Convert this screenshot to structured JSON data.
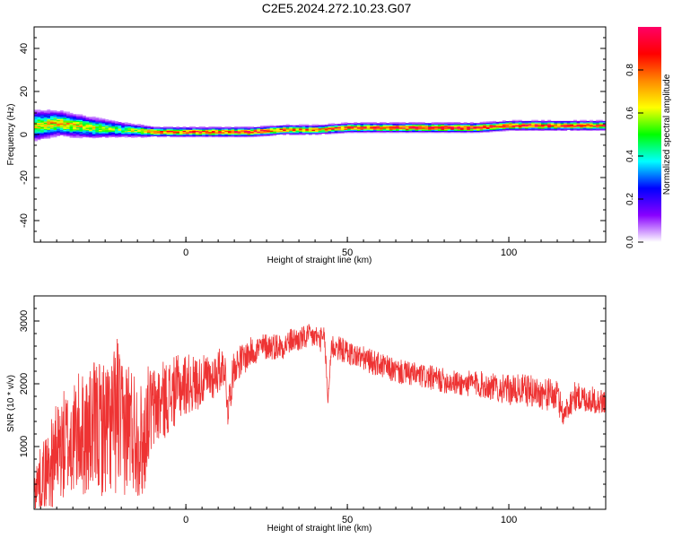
{
  "title": "C2E5.2024.272.10.23.G07",
  "colors": {
    "snr_line": "#ee3333",
    "rainbow": [
      "#ffffff",
      "#8800ff",
      "#0000ff",
      "#00ffff",
      "#00ff00",
      "#ffff00",
      "#ff8800",
      "#ff0000",
      "#ff0066"
    ]
  },
  "chart_data": [
    {
      "type": "heatmap",
      "xlabel": "Height of straight line (km)",
      "ylabel": "Frequency (Hz)",
      "xlim": [
        -47,
        130
      ],
      "ylim": [
        -50,
        50
      ],
      "x_ticks": [
        0,
        50,
        100
      ],
      "x_tick_labels": [
        "0",
        "50",
        "100"
      ],
      "y_ticks": [
        -40,
        -20,
        0,
        20,
        40
      ],
      "y_tick_labels": [
        "-40",
        "-20",
        "0",
        "20",
        "40"
      ],
      "colorbar": {
        "label": "Normalized spectral amplitude",
        "range": [
          0,
          1
        ],
        "ticks": [
          0,
          0.2,
          0.4,
          0.6,
          0.8
        ],
        "tick_labels": [
          "0.0",
          "0.2",
          "0.4",
          "0.6",
          "0.8"
        ]
      },
      "ridge": {
        "x": [
          -47,
          -40,
          -30,
          -20,
          -10,
          0,
          10,
          20,
          30,
          40,
          50,
          60,
          70,
          80,
          90,
          100,
          110,
          120,
          130
        ],
        "center_hz": [
          4,
          5,
          3,
          2,
          1,
          1,
          1,
          1,
          2,
          2,
          3,
          3,
          3,
          3,
          3,
          4,
          4,
          4,
          4
        ],
        "width_hz": [
          10,
          8,
          7,
          5,
          3,
          3,
          3,
          3,
          3,
          3,
          3,
          3,
          3,
          3,
          3,
          3,
          3,
          3,
          3
        ],
        "peak_amplitude": [
          0.6,
          0.7,
          0.6,
          0.5,
          0.8,
          0.85,
          0.85,
          0.9,
          0.8,
          0.75,
          0.85,
          0.85,
          0.9,
          0.95,
          0.95,
          0.9,
          0.9,
          0.85,
          0.85
        ]
      }
    },
    {
      "type": "line",
      "xlabel": "Height of straight line (km)",
      "ylabel": "SNR (10 * v/v)",
      "xlim": [
        -47,
        130
      ],
      "ylim": [
        0,
        3400
      ],
      "x_ticks": [
        0,
        50,
        100
      ],
      "x_tick_labels": [
        "0",
        "50",
        "100"
      ],
      "y_ticks": [
        1000,
        2000,
        3000
      ],
      "y_tick_labels": [
        "1000",
        "2000",
        "3000"
      ],
      "series": [
        {
          "x": [
            -47,
            -45,
            -42,
            -40,
            -38,
            -35,
            -33,
            -30,
            -28,
            -25,
            -22,
            -21,
            -20,
            -18,
            -15,
            -13,
            -12,
            -10,
            -8,
            -5,
            -3,
            0,
            3,
            5,
            8,
            10,
            12,
            13,
            15,
            18,
            20,
            22,
            25,
            28,
            30,
            33,
            35,
            38,
            40,
            42,
            43,
            44,
            45,
            48,
            50,
            55,
            60,
            65,
            70,
            75,
            80,
            85,
            90,
            95,
            100,
            105,
            110,
            115,
            117,
            120,
            125,
            130
          ],
          "mean": [
            300,
            500,
            700,
            900,
            1000,
            1100,
            1200,
            1200,
            1300,
            1300,
            1400,
            1600,
            1200,
            1400,
            1200,
            1000,
            1500,
            1600,
            1700,
            1800,
            1900,
            2000,
            2000,
            2050,
            2100,
            2200,
            2300,
            1600,
            2300,
            2400,
            2500,
            2550,
            2600,
            2600,
            2600,
            2700,
            2700,
            2750,
            2750,
            2700,
            2700,
            1700,
            2600,
            2550,
            2500,
            2400,
            2300,
            2200,
            2150,
            2100,
            2050,
            2000,
            2000,
            1950,
            1900,
            1900,
            1850,
            1800,
            1500,
            1800,
            1750,
            1700
          ],
          "spread": [
            350,
            500,
            700,
            800,
            900,
            900,
            1000,
            1000,
            1100,
            1100,
            1200,
            1400,
            1100,
            1100,
            1000,
            900,
            800,
            700,
            650,
            600,
            550,
            500,
            450,
            400,
            380,
            360,
            320,
            300,
            280,
            260,
            240,
            230,
            220,
            220,
            210,
            200,
            200,
            200,
            200,
            200,
            200,
            100,
            220,
            200,
            200,
            200,
            200,
            200,
            200,
            200,
            200,
            200,
            220,
            220,
            240,
            260,
            260,
            260,
            200,
            240,
            220,
            200
          ]
        }
      ]
    }
  ]
}
